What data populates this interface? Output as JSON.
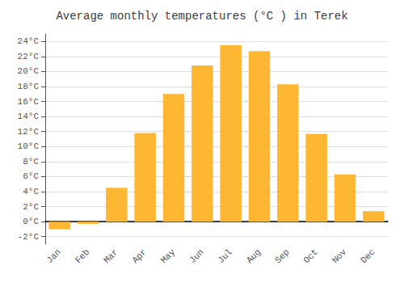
{
  "chart_data": {
    "type": "bar",
    "title": "Average monthly temperatures (°C ) in Terek",
    "categories": [
      "Jan",
      "Feb",
      "Mar",
      "Apr",
      "May",
      "Jun",
      "Jul",
      "Aug",
      "Sep",
      "Oct",
      "Nov",
      "Dec"
    ],
    "values": [
      -1.0,
      -0.3,
      4.5,
      11.8,
      17.0,
      20.8,
      23.5,
      22.7,
      18.3,
      11.7,
      6.3,
      1.4
    ],
    "color": "#FFB733",
    "ylim": [
      -3,
      25
    ],
    "yticks": [
      {
        "value": -2,
        "label": "-2°C"
      },
      {
        "value": 0,
        "label": "0°C"
      },
      {
        "value": 2,
        "label": "2°C"
      },
      {
        "value": 4,
        "label": "4°C"
      },
      {
        "value": 6,
        "label": "6°C"
      },
      {
        "value": 8,
        "label": "8°C"
      },
      {
        "value": 10,
        "label": "10°C"
      },
      {
        "value": 12,
        "label": "12°C"
      },
      {
        "value": 14,
        "label": "14°C"
      },
      {
        "value": 16,
        "label": "16°C"
      },
      {
        "value": 18,
        "label": "18°C"
      },
      {
        "value": 20,
        "label": "20°C"
      },
      {
        "value": 22,
        "label": "22°C"
      },
      {
        "value": 24,
        "label": "24°C"
      }
    ],
    "grid": true
  }
}
